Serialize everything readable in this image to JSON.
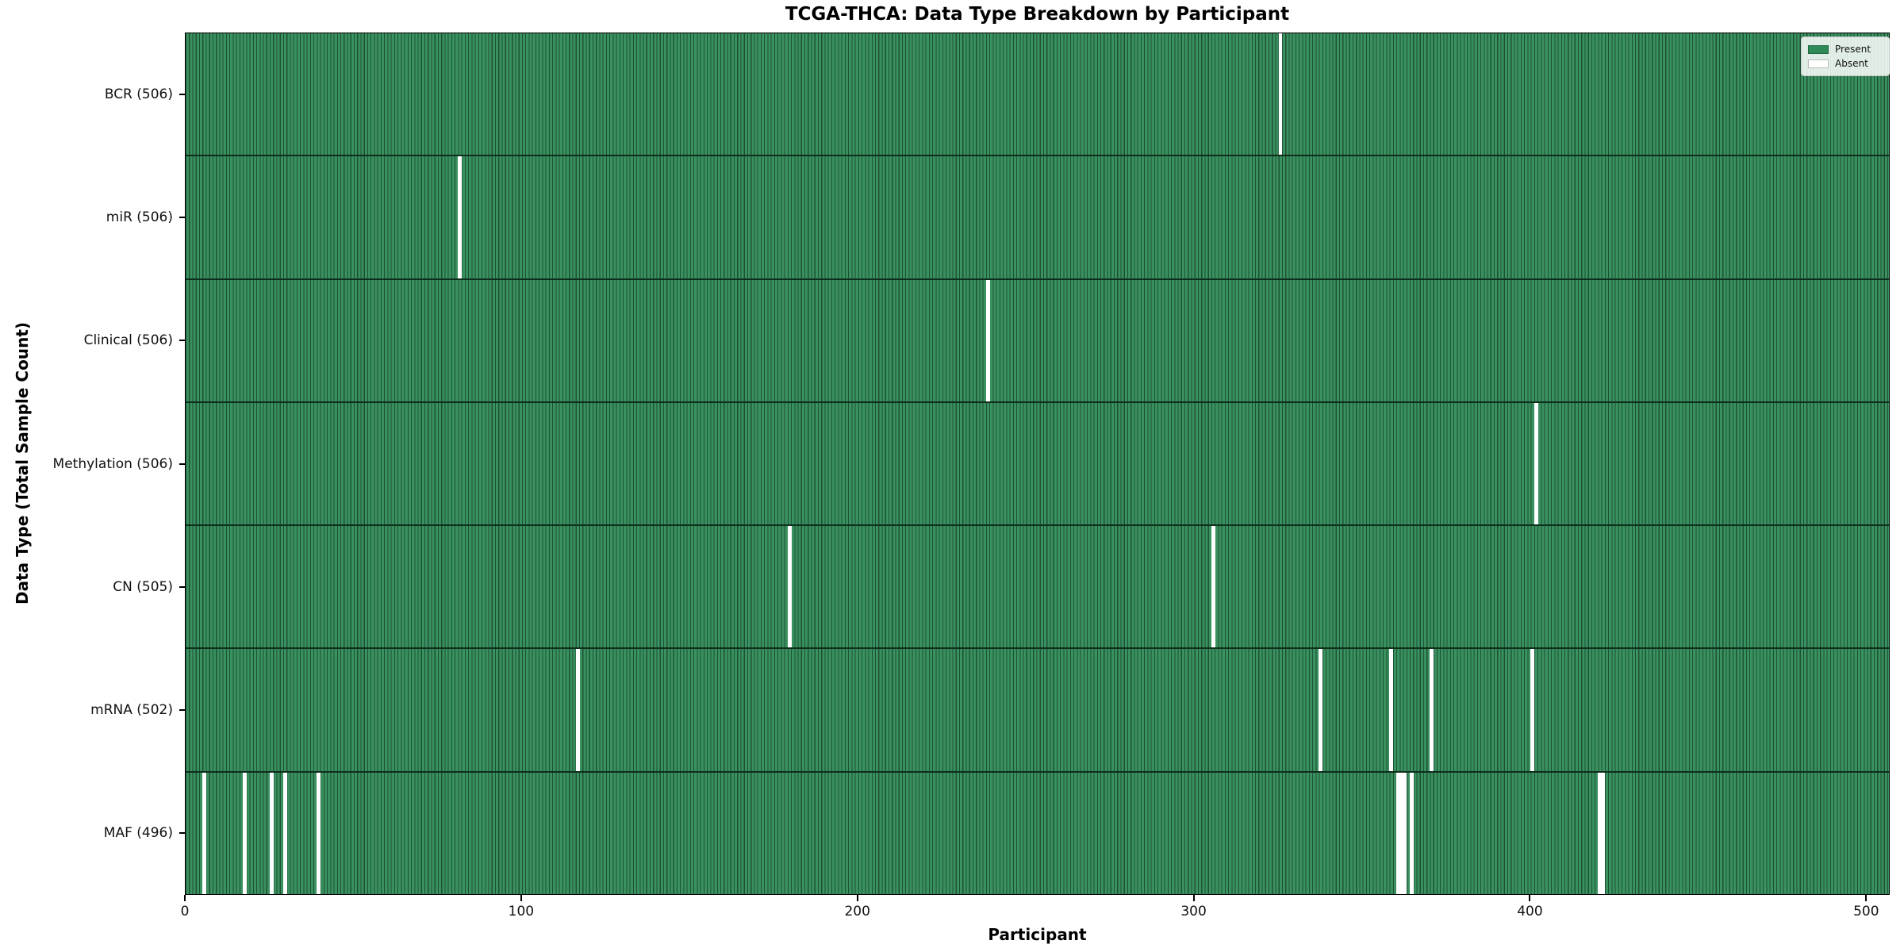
{
  "window": {
    "title": "TCGA-THCA: Data Type Breakdown by Participant"
  },
  "chart_data": {
    "type": "heatmap",
    "title": "TCGA-THCA: Data Type Breakdown by Participant",
    "xlabel": "Participant",
    "ylabel": "Data Type (Total Sample Count)",
    "x_ticks": [
      0,
      100,
      200,
      300,
      400,
      500
    ],
    "x_range": [
      0,
      507
    ],
    "total_participants": 507,
    "grid": false,
    "legend": {
      "position": "upper-right",
      "entries": [
        {
          "label": "Present",
          "color": "#2e8b57"
        },
        {
          "label": "Absent",
          "color": "#ffffff"
        }
      ]
    },
    "rows": [
      {
        "label": "BCR (506)",
        "data_type": "BCR",
        "present_count": 506,
        "absent_participants": [
          325
        ]
      },
      {
        "label": "miR (506)",
        "data_type": "miR",
        "present_count": 506,
        "absent_participants": [
          81
        ]
      },
      {
        "label": "Clinical (506)",
        "data_type": "Clinical",
        "present_count": 506,
        "absent_participants": [
          238
        ]
      },
      {
        "label": "Methylation (506)",
        "data_type": "Methylation",
        "present_count": 506,
        "absent_participants": [
          401
        ]
      },
      {
        "label": "CN (505)",
        "data_type": "CN",
        "present_count": 505,
        "absent_participants": [
          179,
          305
        ]
      },
      {
        "label": "mRNA (502)",
        "data_type": "mRNA",
        "present_count": 502,
        "absent_participants": [
          116,
          337,
          358,
          370,
          400
        ]
      },
      {
        "label": "MAF (496)",
        "data_type": "MAF",
        "present_count": 496,
        "absent_participants": [
          5,
          17,
          25,
          29,
          39,
          360,
          361,
          362,
          364,
          420,
          421
        ]
      }
    ],
    "colors": {
      "bar_fill": "#3a9160",
      "bar_edge": "#1d5134",
      "absent": "#ffffff",
      "row_divider": "#0e2e1c",
      "spine": "#000000"
    }
  }
}
